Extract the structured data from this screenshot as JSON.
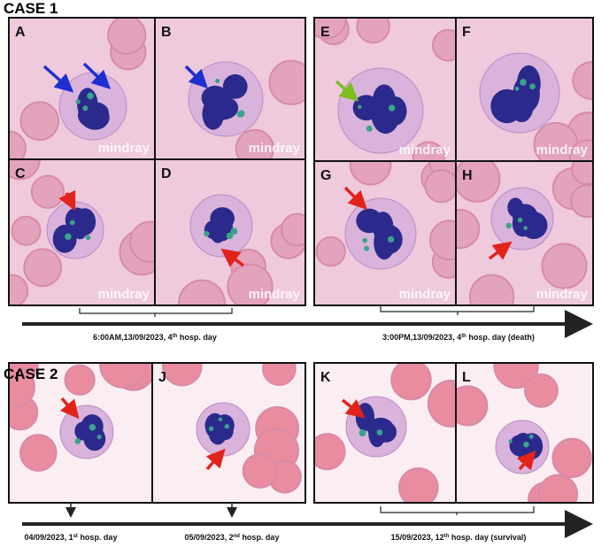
{
  "case1": {
    "title": "CASE 1",
    "panels": [
      "A",
      "B",
      "C",
      "D",
      "E",
      "F",
      "G",
      "H"
    ],
    "watermark": "mindray",
    "timeline": [
      {
        "text": "6:00AM,13/09/2023, 4",
        "sup": "th",
        "tail": " hosp. day"
      },
      {
        "text": "3:00PM,13/09/2023, 4",
        "sup": "th",
        "tail": " hosp. day (death)"
      }
    ]
  },
  "case2": {
    "title": "CASE 2",
    "panels": [
      "I",
      "J",
      "K",
      "L"
    ],
    "timeline": [
      {
        "text": "04/09/2023, 1",
        "sup": "st",
        "tail": " hosp. day"
      },
      {
        "text": "05/09/2023, 2",
        "sup": "nd",
        "tail": " hosp. day"
      },
      {
        "text": "15/09/2023, 12",
        "sup": "th",
        "tail": " hosp. day (survival)"
      }
    ]
  }
}
